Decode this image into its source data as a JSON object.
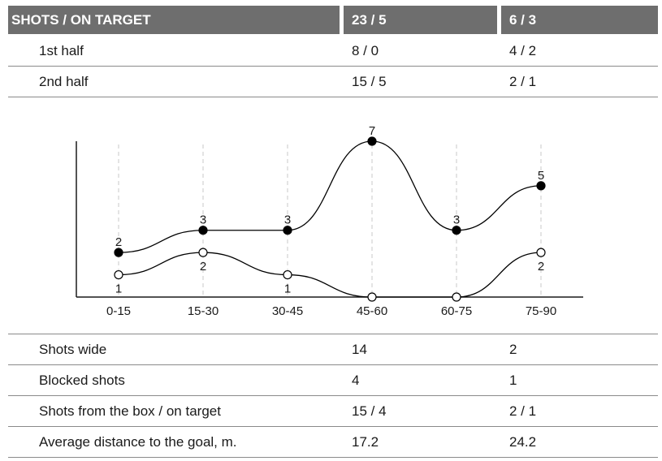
{
  "header": {
    "label": "SHOTS / ON TARGET",
    "team_a": "23 / 5",
    "team_b": "6 / 3"
  },
  "top_rows": [
    {
      "label": "1st half",
      "team_a": "8 / 0",
      "team_b": "4 / 2"
    },
    {
      "label": "2nd half",
      "team_a": "15 / 5",
      "team_b": "2 / 1"
    }
  ],
  "bottom_rows": [
    {
      "label": "Shots wide",
      "team_a": "14",
      "team_b": "2"
    },
    {
      "label": "Blocked shots",
      "team_a": "4",
      "team_b": "1"
    },
    {
      "label": "Shots from the box / on target",
      "team_a": "15 / 4",
      "team_b": "2 / 1"
    },
    {
      "label": "Average distance to the goal, m.",
      "team_a": "17.2",
      "team_b": "24.2"
    }
  ],
  "chart_data": {
    "type": "line",
    "categories": [
      "0-15",
      "15-30",
      "30-45",
      "45-60",
      "60-75",
      "75-90"
    ],
    "series": [
      {
        "values": [
          2,
          3,
          3,
          7,
          3,
          5
        ],
        "marker": "filled",
        "color": "#000000"
      },
      {
        "values": [
          1,
          2,
          1,
          0,
          0,
          2
        ],
        "marker": "hollow",
        "color": "#000000"
      }
    ],
    "ylim": [
      0,
      7
    ],
    "grid": "vertical-dashed",
    "title": "",
    "xlabel": "",
    "ylabel": ""
  }
}
